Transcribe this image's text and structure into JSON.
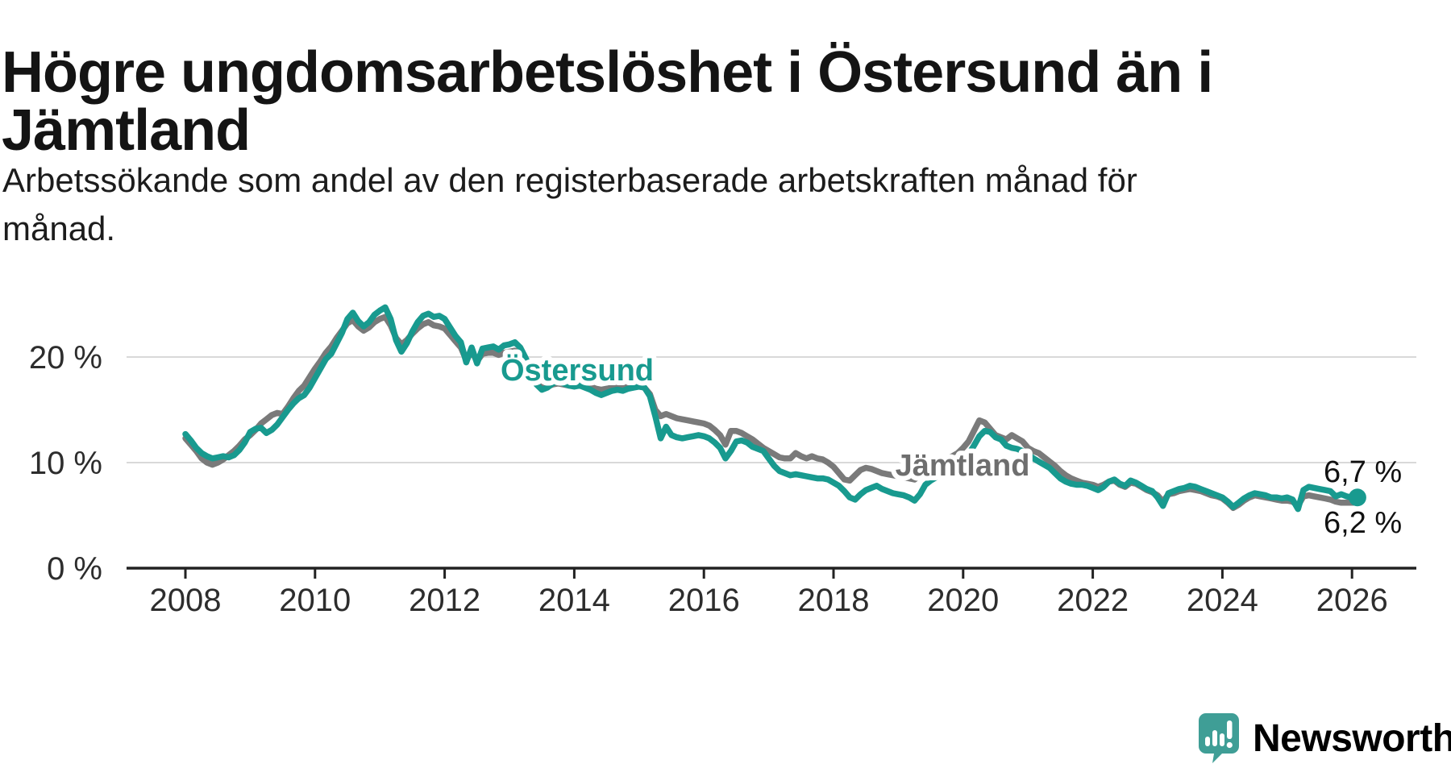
{
  "title": "Högre ungdomsarbetslöshet i Östersund än i Jämtland",
  "subtitle": "Arbetssökande som andel av den registerbaserade arbetskraften månad för månad.",
  "branding": {
    "name": "Newsworthy",
    "brand_color": "#36978e",
    "icon": "speech-bubble-bar-chart"
  },
  "chart_data": {
    "type": "line",
    "title": "Högre ungdomsarbetslöshet i Östersund än i Jämtland",
    "subtitle": "Arbetssökande som andel av den registerbaserade arbetskraften månad för månad.",
    "x_unit": "month",
    "x_start_year": 2008,
    "x_end": "2026-02",
    "xlim": [
      2007.1,
      2027.0
    ],
    "ylim": [
      0,
      26
    ],
    "grid": "horizontal",
    "legend_position": "inline-labels",
    "x_ticks": [
      2008,
      2010,
      2012,
      2014,
      2016,
      2018,
      2020,
      2022,
      2024,
      2026
    ],
    "y_ticks": [
      {
        "value": 0,
        "label": "0 %"
      },
      {
        "value": 10,
        "label": "10 %"
      },
      {
        "value": 20,
        "label": "20 %"
      }
    ],
    "series": [
      {
        "name": "Östersund",
        "color": "#189a8f",
        "last_value_label": "6,7 %",
        "values": [
          12.7,
          12.1,
          11.4,
          10.9,
          10.6,
          10.4,
          10.5,
          10.6,
          10.5,
          10.7,
          11.2,
          11.9,
          12.9,
          13.2,
          13.3,
          12.8,
          13.1,
          13.6,
          14.3,
          15.0,
          15.6,
          16.1,
          16.4,
          17.1,
          18.0,
          18.9,
          19.8,
          20.3,
          21.3,
          22.3,
          23.6,
          24.2,
          23.4,
          22.9,
          23.3,
          24.0,
          24.4,
          24.7,
          23.6,
          21.6,
          20.5,
          21.3,
          22.4,
          23.3,
          23.9,
          24.1,
          23.8,
          23.9,
          23.6,
          22.8,
          22.0,
          21.4,
          19.5,
          20.9,
          19.4,
          20.8,
          20.9,
          21.0,
          20.7,
          21.1,
          21.2,
          21.4,
          20.9,
          19.9,
          18.7,
          17.4,
          16.9,
          17.1,
          17.5,
          17.7,
          17.5,
          17.3,
          17.2,
          17.3,
          17.1,
          16.9,
          16.6,
          16.4,
          16.6,
          16.8,
          16.9,
          16.8,
          17.0,
          17.1,
          17.2,
          17.1,
          16.3,
          14.4,
          12.3,
          13.4,
          12.6,
          12.4,
          12.3,
          12.4,
          12.5,
          12.6,
          12.5,
          12.3,
          11.9,
          11.4,
          10.4,
          11.1,
          12.0,
          12.1,
          11.9,
          11.5,
          11.3,
          11.1,
          10.4,
          9.7,
          9.2,
          9.0,
          8.8,
          8.9,
          8.8,
          8.7,
          8.6,
          8.5,
          8.5,
          8.4,
          8.1,
          7.8,
          7.3,
          6.7,
          6.5,
          7.0,
          7.4,
          7.6,
          7.8,
          7.5,
          7.3,
          7.1,
          7.0,
          6.9,
          6.7,
          6.4,
          7.0,
          7.9,
          8.3,
          8.6,
          8.9,
          9.1,
          9.3,
          9.6,
          10.2,
          10.8,
          11.6,
          12.5,
          13.0,
          12.9,
          12.4,
          12.2,
          11.6,
          11.4,
          11.3,
          11.1,
          10.8,
          10.4,
          10.1,
          9.8,
          9.5,
          9.0,
          8.5,
          8.2,
          8.0,
          7.9,
          7.9,
          7.8,
          7.6,
          7.4,
          7.7,
          8.2,
          8.4,
          8.0,
          7.8,
          8.3,
          8.1,
          7.8,
          7.5,
          7.3,
          6.7,
          5.9,
          7.1,
          7.3,
          7.5,
          7.6,
          7.8,
          7.7,
          7.5,
          7.3,
          7.1,
          6.9,
          6.7,
          6.3,
          5.8,
          6.2,
          6.6,
          6.9,
          7.1,
          7.0,
          6.9,
          6.7,
          6.7,
          6.6,
          6.7,
          6.5,
          5.6,
          7.4,
          7.7,
          7.6,
          7.5,
          7.4,
          7.3,
          6.8,
          7.0,
          6.8,
          6.7,
          6.7
        ]
      },
      {
        "name": "Jämtland",
        "color": "#7a7a7a",
        "label_color": "#6e6e6e",
        "last_value_label": "6,2 %",
        "values": [
          12.3,
          11.7,
          11.1,
          10.4,
          10.0,
          9.8,
          10.0,
          10.3,
          10.7,
          11.1,
          11.6,
          12.2,
          12.6,
          13.1,
          13.7,
          14.1,
          14.5,
          14.7,
          14.6,
          15.3,
          16.1,
          16.8,
          17.3,
          18.1,
          18.9,
          19.6,
          20.4,
          21.0,
          21.8,
          22.5,
          23.2,
          23.5,
          22.9,
          22.5,
          22.8,
          23.3,
          23.6,
          23.8,
          23.0,
          21.8,
          21.2,
          21.6,
          22.2,
          22.7,
          23.1,
          23.3,
          23.0,
          22.9,
          22.7,
          22.1,
          21.5,
          20.9,
          19.7,
          20.5,
          19.6,
          20.3,
          20.4,
          20.4,
          20.2,
          20.4,
          20.5,
          20.6,
          20.2,
          19.4,
          18.5,
          17.5,
          17.1,
          17.2,
          17.4,
          17.5,
          17.4,
          17.3,
          17.3,
          17.4,
          17.3,
          17.2,
          17.0,
          16.9,
          17.0,
          17.1,
          17.2,
          17.1,
          17.2,
          17.2,
          17.2,
          17.1,
          16.5,
          15.0,
          14.4,
          14.6,
          14.4,
          14.2,
          14.1,
          14.0,
          13.9,
          13.8,
          13.7,
          13.5,
          13.1,
          12.6,
          11.7,
          13.0,
          13.0,
          12.8,
          12.5,
          12.2,
          11.8,
          11.4,
          11.1,
          10.8,
          10.5,
          10.4,
          10.4,
          10.9,
          10.6,
          10.4,
          10.6,
          10.4,
          10.3,
          10.0,
          9.6,
          9.0,
          8.4,
          8.3,
          8.8,
          9.3,
          9.5,
          9.4,
          9.2,
          9.0,
          8.9,
          8.8,
          8.7,
          8.6,
          8.5,
          8.4,
          8.8,
          9.5,
          9.8,
          10.0,
          10.2,
          10.4,
          10.6,
          10.9,
          11.4,
          12.0,
          13.0,
          14.0,
          13.8,
          13.2,
          12.6,
          12.4,
          12.2,
          12.6,
          12.3,
          12.0,
          11.4,
          11.1,
          10.9,
          10.5,
          10.1,
          9.7,
          9.2,
          8.8,
          8.5,
          8.3,
          8.1,
          8.0,
          7.9,
          7.7,
          7.9,
          8.2,
          8.3,
          7.9,
          7.7,
          8.1,
          8.0,
          7.7,
          7.4,
          7.2,
          6.9,
          6.3,
          7.0,
          7.1,
          7.3,
          7.4,
          7.5,
          7.4,
          7.3,
          7.1,
          6.9,
          6.8,
          6.6,
          6.2,
          5.7,
          6.0,
          6.4,
          6.7,
          6.9,
          6.8,
          6.7,
          6.6,
          6.5,
          6.4,
          6.4,
          6.3,
          5.9,
          6.8,
          6.9,
          6.8,
          6.7,
          6.6,
          6.5,
          6.3,
          6.2,
          6.2,
          6.2,
          6.2
        ]
      }
    ]
  }
}
